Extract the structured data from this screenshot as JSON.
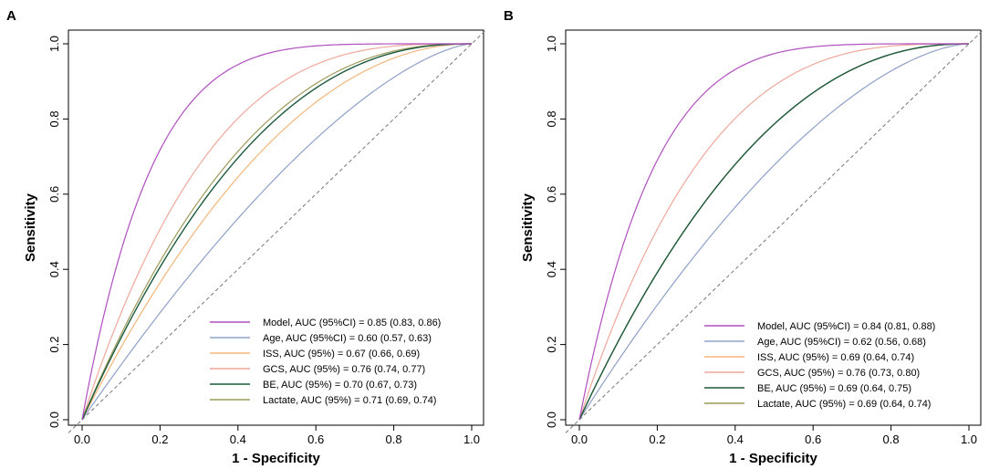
{
  "colors": {
    "model": "#b04fbf",
    "age": "#8fa0c8",
    "iss": "#f3b67a",
    "gcs": "#eea89c",
    "be": "#1d5a3c",
    "lactate": "#9c9a5a",
    "reference": "#777777"
  },
  "chart_data": [
    {
      "type": "line",
      "panel_label": "A",
      "xlabel": "1 - Specificity",
      "ylabel": "Sensitivity",
      "xlim": [
        0,
        1
      ],
      "ylim": [
        0,
        1
      ],
      "x_ticks": [
        "0.0",
        "0.2",
        "0.4",
        "0.6",
        "0.8",
        "1.0"
      ],
      "y_ticks": [
        "0.0",
        "0.2",
        "0.4",
        "0.6",
        "0.8",
        "1.0"
      ],
      "reference_line": "diagonal",
      "legend_position": "bottom-right",
      "series": [
        {
          "key": "model",
          "name": "Model, AUC (95%CI) = 0.85 (0.83, 0.86)",
          "auc": 0.85
        },
        {
          "key": "age",
          "name": "Age, AUC (95%CI) = 0.60 (0.57, 0.63)",
          "auc": 0.6
        },
        {
          "key": "iss",
          "name": "ISS, AUC (95%) = 0.67 (0.66, 0.69)",
          "auc": 0.67
        },
        {
          "key": "gcs",
          "name": "GCS, AUC (95%) = 0.76 (0.74, 0.77)",
          "auc": 0.76
        },
        {
          "key": "be",
          "name": "BE, AUC (95%) = 0.70 (0.67, 0.73)",
          "auc": 0.7
        },
        {
          "key": "lactate",
          "name": "Lactate, AUC (95%) = 0.71 (0.69, 0.74)",
          "auc": 0.71
        }
      ]
    },
    {
      "type": "line",
      "panel_label": "B",
      "xlabel": "1 - Specificity",
      "ylabel": "Sensitivity",
      "xlim": [
        0,
        1
      ],
      "ylim": [
        0,
        1
      ],
      "x_ticks": [
        "0.0",
        "0.2",
        "0.4",
        "0.6",
        "0.8",
        "1.0"
      ],
      "y_ticks": [
        "0.0",
        "0.2",
        "0.4",
        "0.6",
        "0.8",
        "1.0"
      ],
      "reference_line": "diagonal",
      "legend_position": "bottom-right",
      "series": [
        {
          "key": "model",
          "name": "Model, AUC (95%CI) = 0.84 (0.81, 0.88)",
          "auc": 0.84
        },
        {
          "key": "age",
          "name": "Age, AUC (95%CI) = 0.62 (0.56, 0.68)",
          "auc": 0.62
        },
        {
          "key": "iss",
          "name": "ISS, AUC (95%) = 0.69 (0.64, 0.74)",
          "auc": 0.69
        },
        {
          "key": "gcs",
          "name": "GCS, AUC (95%) = 0.76 (0.73, 0.80)",
          "auc": 0.76
        },
        {
          "key": "be",
          "name": "BE, AUC (95%) = 0.69 (0.64, 0.75)",
          "auc": 0.69
        },
        {
          "key": "lactate",
          "name": "Lactate, AUC (95%) = 0.69 (0.64, 0.74)",
          "auc": 0.69
        }
      ]
    }
  ]
}
